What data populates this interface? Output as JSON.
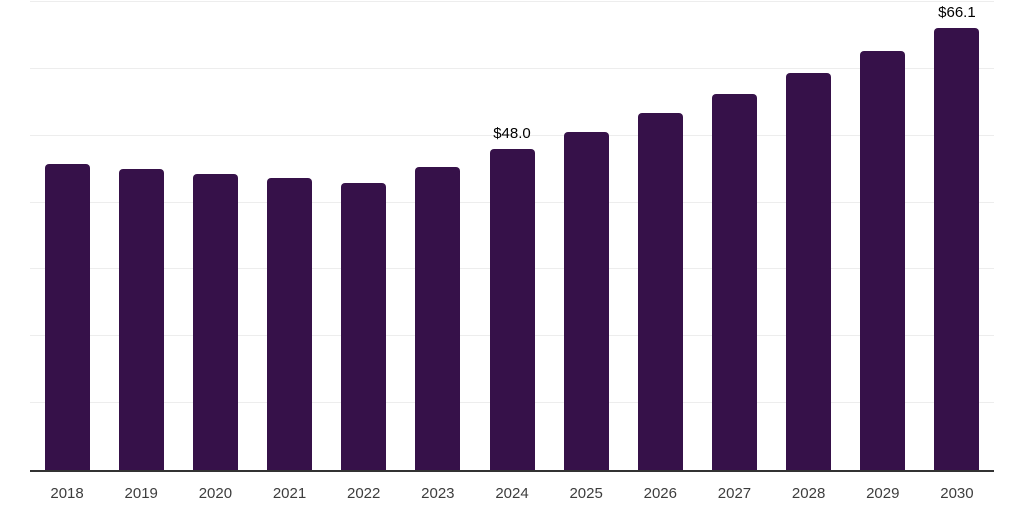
{
  "chart_data": {
    "type": "bar",
    "title": "",
    "xlabel": "",
    "ylabel": "",
    "categories": [
      "2018",
      "2019",
      "2020",
      "2021",
      "2022",
      "2023",
      "2024",
      "2025",
      "2026",
      "2027",
      "2028",
      "2029",
      "2030"
    ],
    "values": [
      45.7,
      45.0,
      44.3,
      43.7,
      43.0,
      45.3,
      48.0,
      50.6,
      53.4,
      56.3,
      59.4,
      62.7,
      66.1
    ],
    "data_labels": {
      "2024": "$48.0",
      "2030": "$66.1"
    },
    "ylim": [
      0,
      70
    ],
    "gridline_step": 10,
    "grid": true,
    "legend": false,
    "colors": {
      "bar": "#361149",
      "value_label": "#000000",
      "tick_label": "#3d3d3d",
      "gridline": "#ededed",
      "axis_line": "#333333",
      "background": "#ffffff"
    }
  }
}
